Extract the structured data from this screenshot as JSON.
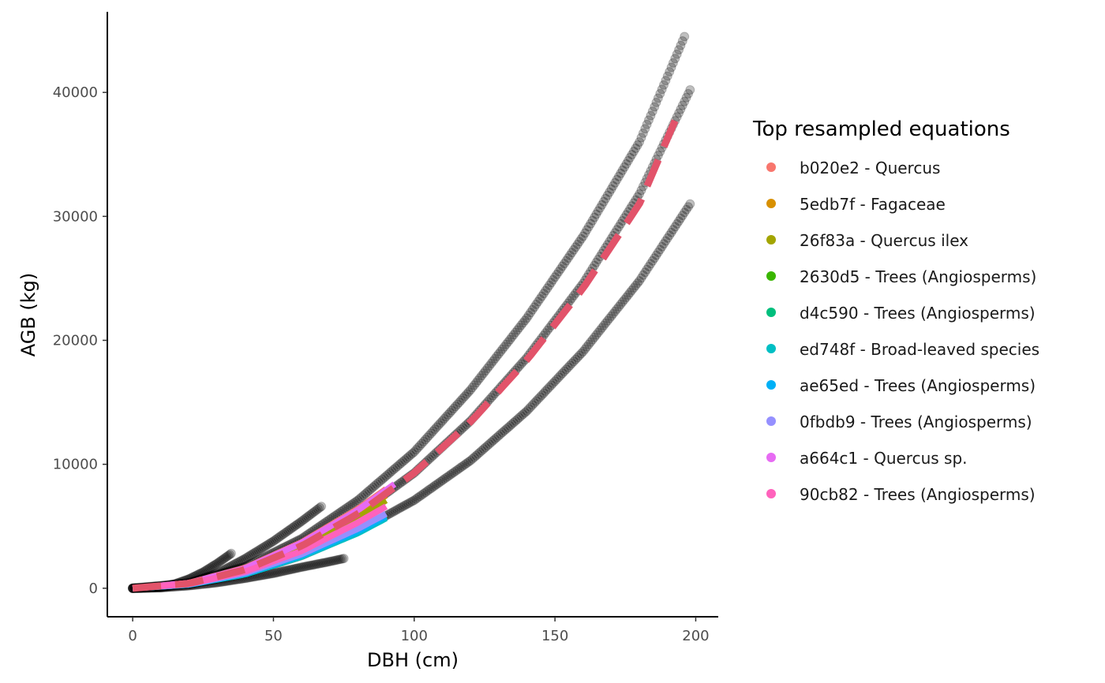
{
  "chart_data": {
    "type": "scatter",
    "xlabel": "DBH (cm)",
    "ylabel": "AGB (kg)",
    "xlim": [
      -9,
      208
    ],
    "ylim": [
      -2300,
      46500
    ],
    "xticks": [
      0,
      50,
      100,
      150,
      200
    ],
    "yticks": [
      0,
      10000,
      20000,
      30000,
      40000
    ],
    "xtick_labels": [
      "0",
      "50",
      "100",
      "150",
      "200"
    ],
    "ytick_labels": [
      "0",
      "10000",
      "20000",
      "30000",
      "40000"
    ],
    "grid": false,
    "legend_placement": "right",
    "legend": {
      "title": "Top resampled equations",
      "entries": [
        {
          "label": "b020e2 - Quercus",
          "color": "#F8766D"
        },
        {
          "label": "5edb7f - Fagaceae",
          "color": "#D89000"
        },
        {
          "label": "26f83a - Quercus ilex",
          "color": "#A3A500"
        },
        {
          "label": "2630d5 - Trees (Angiosperms)",
          "color": "#39B600"
        },
        {
          "label": "d4c590 - Trees (Angiosperms)",
          "color": "#00BF7D"
        },
        {
          "label": "ed748f - Broad-leaved species",
          "color": "#00BFC4"
        },
        {
          "label": "ae65ed - Trees (Angiosperms)",
          "color": "#00B0F6"
        },
        {
          "label": "0fbdb9 - Trees (Angiosperms)",
          "color": "#9590FF"
        },
        {
          "label": "a664c1 - Quercus sp.",
          "color": "#E76BF3"
        },
        {
          "label": "90cb82 - Trees (Angiosperms)",
          "color": "#FF62BC"
        }
      ]
    },
    "background_points": {
      "color": "#000000",
      "opacity": 0.25,
      "curves": [
        {
          "x": [
            0,
            5,
            10,
            15,
            20,
            25,
            30,
            35
          ],
          "y": [
            0,
            20,
            120,
            350,
            750,
            1300,
            2000,
            2800
          ]
        },
        {
          "x": [
            0,
            10,
            20,
            30,
            40,
            50,
            60,
            67
          ],
          "y": [
            0,
            60,
            420,
            1200,
            2400,
            3800,
            5400,
            6600
          ]
        },
        {
          "x": [
            0,
            10,
            20,
            30,
            40,
            50,
            60,
            70,
            75
          ],
          "y": [
            0,
            40,
            200,
            450,
            800,
            1200,
            1700,
            2150,
            2400
          ]
        },
        {
          "x": [
            0,
            20,
            40,
            60,
            80,
            100,
            120,
            140,
            160,
            180,
            196
          ],
          "y": [
            0,
            430,
            1750,
            4000,
            7100,
            11000,
            16000,
            21800,
            28400,
            36000,
            44500
          ]
        },
        {
          "x": [
            0,
            20,
            40,
            60,
            80,
            100,
            120,
            140,
            160,
            180,
            198
          ],
          "y": [
            0,
            350,
            1450,
            3400,
            6000,
            9300,
            13500,
            18600,
            24600,
            31800,
            40200
          ]
        },
        {
          "x": [
            0,
            20,
            40,
            60,
            80,
            100,
            120,
            140,
            160,
            180,
            198
          ],
          "y": [
            0,
            300,
            1200,
            2650,
            4600,
            7100,
            10300,
            14300,
            19100,
            24800,
            31000
          ]
        }
      ]
    },
    "series": [
      {
        "color": "#F8766D",
        "style": "solid",
        "x": [
          0,
          20,
          40,
          60,
          80,
          90
        ],
        "y": [
          0,
          430,
          1650,
          3700,
          6400,
          8000
        ]
      },
      {
        "color": "#D89000",
        "style": "solid",
        "x": [
          0,
          20,
          40,
          60,
          80,
          90
        ],
        "y": [
          0,
          400,
          1550,
          3450,
          6000,
          7500
        ]
      },
      {
        "color": "#A3A500",
        "style": "solid",
        "x": [
          0,
          20,
          40,
          60,
          80,
          90
        ],
        "y": [
          0,
          380,
          1450,
          3250,
          5700,
          7100
        ]
      },
      {
        "color": "#39B600",
        "style": "solid",
        "x": [
          0,
          20,
          40,
          60,
          80,
          90
        ],
        "y": [
          0,
          330,
          1250,
          2800,
          4750,
          5900
        ]
      },
      {
        "color": "#00BF7D",
        "style": "solid",
        "x": [
          0,
          20,
          40,
          60,
          80,
          90
        ],
        "y": [
          0,
          300,
          1150,
          2600,
          4500,
          5700
        ]
      },
      {
        "color": "#00BFC4",
        "style": "solid",
        "x": [
          0,
          20,
          40,
          60,
          80,
          90
        ],
        "y": [
          0,
          290,
          1120,
          2550,
          4450,
          5650
        ]
      },
      {
        "color": "#00B0F6",
        "style": "solid",
        "x": [
          0,
          20,
          40,
          60,
          80,
          90
        ],
        "y": [
          0,
          300,
          1180,
          2650,
          4600,
          5800
        ]
      },
      {
        "color": "#9590FF",
        "style": "solid",
        "x": [
          0,
          20,
          40,
          60,
          80,
          90
        ],
        "y": [
          0,
          320,
          1230,
          2750,
          4800,
          6000
        ]
      },
      {
        "color": "#E76BF3",
        "style": "solid",
        "x": [
          0,
          20,
          40,
          60,
          80,
          93
        ],
        "y": [
          0,
          420,
          1600,
          3650,
          6300,
          8400
        ]
      },
      {
        "color": "#FF62BC",
        "style": "solid",
        "x": [
          0,
          20,
          40,
          60,
          80,
          90
        ],
        "y": [
          0,
          350,
          1350,
          3000,
          5300,
          6600
        ]
      },
      {
        "color": "#E2536A",
        "style": "dashed",
        "x": [
          0,
          20,
          40,
          60,
          80,
          100,
          120,
          140,
          160,
          180,
          193
        ],
        "y": [
          0,
          380,
          1500,
          3400,
          6000,
          9300,
          13400,
          18400,
          24200,
          31000,
          37900
        ]
      }
    ]
  }
}
